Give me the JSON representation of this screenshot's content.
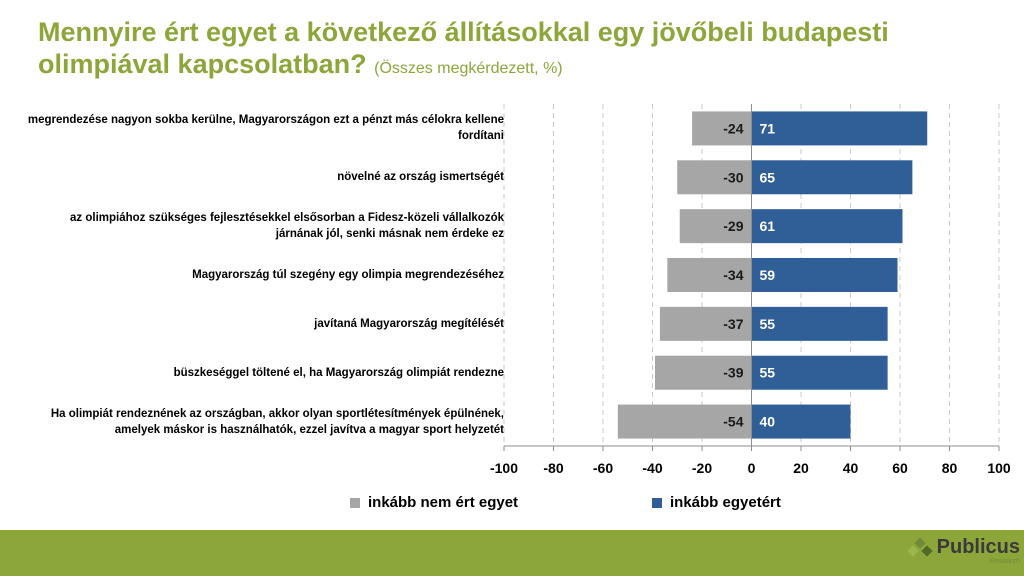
{
  "title": {
    "main": "Mennyire ért egyet a következő állításokkal egy jövőbeli budapesti olimpiával kapcsolatban?",
    "subtitle": "(Összes megkérdezett, %)"
  },
  "colors": {
    "title": "#8da63a",
    "disagree": "#a6a6a6",
    "agree": "#2f5f96",
    "footer": "#8da63a",
    "grid": "#c8c8c8"
  },
  "chart_data": {
    "type": "bar",
    "orientation": "horizontal",
    "stacked": "diverging",
    "categories": [
      "megrendezése nagyon sokba kerülne, Magyarországon ezt a pénzt más célokra kellene fordítani",
      "növelné az ország ismertségét",
      "az olimpiához szükséges fejlesztésekkel elsősorban a Fidesz-közeli vállalkozók járnának jól, senki másnak nem érdeke ez",
      "Magyarország túl szegény egy olimpia megrendezéséhez",
      "javítaná Magyarország megítélését",
      "büszkeséggel töltené el, ha Magyarország olimpiát rendezne",
      "Ha olimpiát rendeznének az országban, akkor olyan sportlétesítmények épülnének, amelyek máskor is használhatók, ezzel javítva a magyar sport helyzetét"
    ],
    "series": [
      {
        "name": "inkább nem ért egyet",
        "values": [
          -24,
          -30,
          -29,
          -34,
          -37,
          -39,
          -54
        ]
      },
      {
        "name": "inkább egyetért",
        "values": [
          71,
          65,
          61,
          59,
          55,
          55,
          40
        ]
      }
    ],
    "xlim": [
      -100,
      100
    ],
    "xticks": [
      "-100",
      "-80",
      "-60",
      "-40",
      "-20",
      "0",
      "20",
      "40",
      "60",
      "80",
      "100"
    ],
    "grid": "vertical-dashed",
    "legend": "bottom"
  },
  "logo": {
    "name": "Publicus",
    "sub": "Research"
  }
}
